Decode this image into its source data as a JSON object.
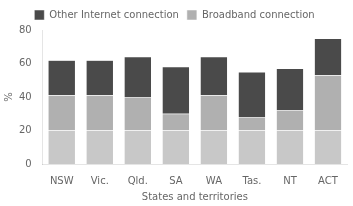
{
  "chart_data": {
    "type": "bar",
    "stacked": true,
    "xlabel": "States and territories",
    "ylabel": "%",
    "categories": [
      "NSW",
      "Vic.",
      "Qld.",
      "SA",
      "WA",
      "Tas.",
      "NT",
      "ACT"
    ],
    "series": [
      {
        "color": "#c8c8c8",
        "values": [
          20,
          20,
          20,
          20,
          20,
          20,
          20,
          20
        ]
      },
      {
        "name": "Broadband connection",
        "color": "#b0b0b0",
        "values": [
          21,
          21,
          20,
          10,
          21,
          8,
          12,
          33
        ]
      },
      {
        "name": "Other Internet connection",
        "color": "#4a4a4a",
        "values": [
          21,
          21,
          24,
          28,
          23,
          27,
          25,
          22
        ]
      }
    ],
    "ylim": [
      0,
      80
    ],
    "yticks": [
      0,
      20,
      40,
      60,
      80
    ],
    "grid": false,
    "legend": "top"
  }
}
